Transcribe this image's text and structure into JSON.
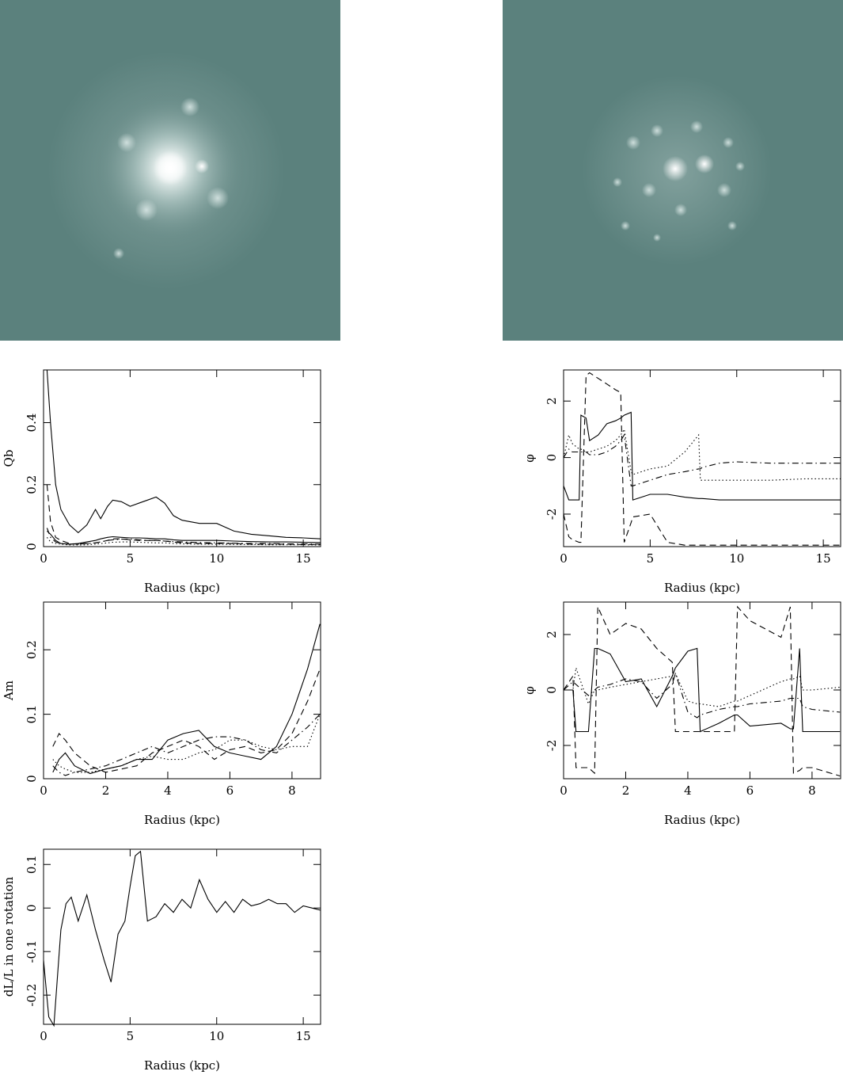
{
  "chart_data": [
    {
      "type": "line",
      "x_label": "Radius (kpc)",
      "y_label": "Qb",
      "xlim": [
        0,
        16
      ],
      "ylim": [
        0,
        0.57
      ],
      "xticks": [
        0,
        5,
        10,
        15
      ],
      "yticks": [
        0,
        0.2,
        0.4
      ],
      "x": [
        0.2,
        0.4,
        0.7,
        1,
        1.5,
        2,
        2.5,
        3,
        3.3,
        3.7,
        4,
        4.5,
        5,
        5.5,
        6,
        6.5,
        7,
        7.5,
        8,
        9,
        10,
        11,
        12,
        13,
        14,
        15,
        16
      ],
      "series": [
        {
          "style": "solid",
          "color": "#000",
          "values": [
            0.57,
            0.4,
            0.2,
            0.12,
            0.07,
            0.045,
            0.07,
            0.12,
            0.09,
            0.13,
            0.15,
            0.145,
            0.13,
            0.14,
            0.15,
            0.16,
            0.14,
            0.1,
            0.085,
            0.075,
            0.075,
            0.05,
            0.04,
            0.035,
            0.03,
            0.028,
            0.025
          ]
        },
        {
          "style": "solid",
          "color": "#000",
          "values": [
            0.05,
            0.04,
            0.02,
            0.01,
            0.008,
            0.01,
            0.015,
            0.02,
            0.025,
            0.03,
            0.032,
            0.03,
            0.028,
            0.028,
            0.027,
            0.025,
            0.025,
            0.022,
            0.02,
            0.02,
            0.02,
            0.018,
            0.016,
            0.015,
            0.015,
            0.014,
            0.013
          ]
        },
        {
          "style": "dashed",
          "color": "#000",
          "values": [
            0.2,
            0.08,
            0.03,
            0.02,
            0.01,
            0.008,
            0.01,
            0.012,
            0.015,
            0.02,
            0.025,
            0.025,
            0.022,
            0.02,
            0.02,
            0.02,
            0.018,
            0.015,
            0.012,
            0.01,
            0.01,
            0.01,
            0.008,
            0.008,
            0.008,
            0.007,
            0.007
          ]
        },
        {
          "style": "dotted",
          "color": "#000",
          "values": [
            0.03,
            0.015,
            0.01,
            0.008,
            0.005,
            0.005,
            0.006,
            0.008,
            0.01,
            0.012,
            0.014,
            0.015,
            0.015,
            0.014,
            0.013,
            0.012,
            0.012,
            0.01,
            0.009,
            0.008,
            0.008,
            0.007,
            0.007,
            0.006,
            0.006,
            0.006,
            0.005
          ]
        },
        {
          "style": "dashdot",
          "color": "#000",
          "values": [
            0.06,
            0.03,
            0.015,
            0.01,
            0.008,
            0.008,
            0.01,
            0.012,
            0.015,
            0.02,
            0.022,
            0.024,
            0.024,
            0.022,
            0.02,
            0.02,
            0.018,
            0.016,
            0.015,
            0.013,
            0.012,
            0.011,
            0.01,
            0.01,
            0.009,
            0.009,
            0.008
          ]
        }
      ]
    },
    {
      "type": "line",
      "x_label": "Radius (kpc)",
      "y_label": "φ",
      "xlim": [
        0,
        16
      ],
      "ylim": [
        -3.15,
        3.1
      ],
      "xticks": [
        0,
        5,
        10,
        15
      ],
      "yticks": [
        -2,
        0,
        2
      ],
      "x": [
        0,
        0.3,
        0.5,
        0.9,
        1,
        1.3,
        1.5,
        2,
        2.5,
        3,
        3.3,
        3.5,
        3.9,
        4,
        5,
        6,
        7,
        7.8,
        7.9,
        8,
        9,
        10,
        12,
        14,
        16
      ],
      "series": [
        {
          "style": "solid",
          "color": "#000",
          "values": [
            -1,
            -1.5,
            -1.5,
            -1.5,
            1.5,
            1.4,
            0.6,
            0.8,
            1.2,
            1.3,
            1.4,
            1.5,
            1.6,
            -1.5,
            -1.3,
            -1.3,
            -1.4,
            -1.45,
            -1.45,
            -1.45,
            -1.5,
            -1.5,
            -1.5,
            -1.5,
            -1.5
          ]
        },
        {
          "style": "dashed",
          "color": "#000",
          "values": [
            -2,
            -2.8,
            -2.9,
            -3,
            -3,
            2.9,
            3,
            2.8,
            2.6,
            2.4,
            2.3,
            -3,
            -2.3,
            -2.1,
            -2,
            -3,
            -3.1,
            -3.1,
            -3.1,
            -3.1,
            -3.1,
            -3.1,
            -3.1,
            -3.1,
            -3.1
          ]
        },
        {
          "style": "dotted",
          "color": "#000",
          "values": [
            0,
            0.8,
            0.5,
            0.3,
            0.3,
            0.2,
            0.2,
            0.3,
            0.4,
            0.6,
            0.8,
            1,
            -0.5,
            -0.6,
            -0.4,
            -0.3,
            0.2,
            0.8,
            -0.8,
            -0.8,
            -0.8,
            -0.8,
            -0.8,
            -0.75,
            -0.75
          ]
        },
        {
          "style": "dashdot",
          "color": "#000",
          "values": [
            0,
            0.3,
            0.2,
            0.2,
            0.2,
            0.2,
            0.1,
            0.1,
            0.2,
            0.4,
            0.6,
            0.8,
            -1,
            -1,
            -0.8,
            -0.6,
            -0.5,
            -0.4,
            -0.4,
            -0.35,
            -0.2,
            -0.15,
            -0.2,
            -0.2,
            -0.2
          ]
        }
      ]
    },
    {
      "type": "line",
      "x_label": "Radius (kpc)",
      "y_label": "Am",
      "xlim": [
        0,
        8.92
      ],
      "ylim": [
        0,
        0.274
      ],
      "xticks": [
        0,
        2,
        4,
        6,
        8
      ],
      "yticks": [
        0,
        0.1,
        0.2
      ],
      "x": [
        0.3,
        0.5,
        0.7,
        1,
        1.5,
        2,
        2.5,
        3,
        3.5,
        4,
        4.5,
        5,
        5.5,
        6,
        6.5,
        7,
        7.5,
        8,
        8.5,
        8.9
      ],
      "series": [
        {
          "style": "solid",
          "color": "#000",
          "values": [
            0.01,
            0.03,
            0.04,
            0.02,
            0.008,
            0.015,
            0.02,
            0.03,
            0.03,
            0.06,
            0.07,
            0.075,
            0.05,
            0.04,
            0.035,
            0.03,
            0.05,
            0.1,
            0.17,
            0.24
          ]
        },
        {
          "style": "dashed",
          "color": "#000",
          "values": [
            0.05,
            0.07,
            0.06,
            0.04,
            0.02,
            0.01,
            0.015,
            0.02,
            0.04,
            0.05,
            0.06,
            0.05,
            0.03,
            0.045,
            0.05,
            0.04,
            0.045,
            0.07,
            0.12,
            0.17
          ]
        },
        {
          "style": "dotted",
          "color": "#000",
          "values": [
            0.03,
            0.02,
            0.015,
            0.01,
            0.01,
            0.015,
            0.02,
            0.03,
            0.035,
            0.03,
            0.03,
            0.04,
            0.045,
            0.06,
            0.06,
            0.05,
            0.045,
            0.05,
            0.05,
            0.1
          ]
        },
        {
          "style": "dashdot",
          "color": "#000",
          "values": [
            0.02,
            0.01,
            0.005,
            0.01,
            0.015,
            0.02,
            0.03,
            0.04,
            0.05,
            0.04,
            0.05,
            0.06,
            0.065,
            0.065,
            0.06,
            0.045,
            0.04,
            0.06,
            0.08,
            0.1
          ]
        }
      ]
    },
    {
      "type": "line",
      "x_label": "Radius (kpc)",
      "y_label": "φ",
      "xlim": [
        0,
        8.92
      ],
      "ylim": [
        -3.2,
        3.17
      ],
      "xticks": [
        0,
        2,
        4,
        6,
        8
      ],
      "yticks": [
        -2,
        0,
        2
      ],
      "x": [
        0,
        0.3,
        0.4,
        0.8,
        1,
        1.1,
        1.5,
        2,
        2.5,
        3,
        3.5,
        3.6,
        4,
        4.3,
        4.4,
        5,
        5.5,
        5.6,
        6,
        7,
        7.3,
        7.4,
        7.6,
        7.7,
        8,
        8.9
      ],
      "series": [
        {
          "style": "solid",
          "color": "#000",
          "values": [
            0,
            0,
            -1.5,
            -1.5,
            1.5,
            1.5,
            1.3,
            0.3,
            0.4,
            -0.6,
            0.5,
            0.8,
            1.4,
            1.5,
            -1.5,
            -1.2,
            -0.9,
            -0.9,
            -1.3,
            -1.2,
            -1.4,
            -1.4,
            1.5,
            -1.5,
            -1.5,
            -1.5
          ]
        },
        {
          "style": "dashed",
          "color": "#000",
          "values": [
            0,
            0.5,
            -2.8,
            -2.8,
            -3,
            3,
            2,
            2.4,
            2.2,
            1.5,
            1,
            -1.5,
            -1.5,
            -1.5,
            -1.5,
            -1.5,
            -1.5,
            3,
            2.5,
            1.9,
            3,
            -3,
            -2.9,
            -2.8,
            -2.8,
            -3.1
          ]
        },
        {
          "style": "dotted",
          "color": "#000",
          "values": [
            0,
            0,
            0.8,
            -0.5,
            0,
            0,
            0.1,
            0.2,
            0.3,
            0.4,
            0.5,
            0.6,
            -0.4,
            -0.5,
            -0.5,
            -0.6,
            -0.4,
            -0.4,
            -0.2,
            0.3,
            0.4,
            0.4,
            0.5,
            0,
            0,
            0.1
          ]
        },
        {
          "style": "dashdot",
          "color": "#000",
          "values": [
            0,
            0.3,
            0.2,
            -0.2,
            0,
            0.1,
            0.2,
            0.4,
            0.3,
            -0.3,
            0.2,
            0.6,
            -0.8,
            -1,
            -0.9,
            -0.7,
            -0.6,
            -0.6,
            -0.5,
            -0.4,
            -0.3,
            -0.3,
            -0.3,
            -0.6,
            -0.7,
            -0.8
          ]
        }
      ]
    },
    {
      "type": "line",
      "x_label": "Radius (kpc)",
      "y_label": "dL/L in one rotation",
      "xlim": [
        0,
        16
      ],
      "ylim": [
        -0.267,
        0.135
      ],
      "xticks": [
        0,
        5,
        10,
        15
      ],
      "yticks": [
        -0.2,
        -0.1,
        0,
        0.1
      ],
      "x": [
        0,
        0.3,
        0.6,
        1,
        1.3,
        1.6,
        2,
        2.5,
        3,
        3.5,
        3.9,
        4.3,
        4.7,
        5,
        5.3,
        5.6,
        6,
        6.5,
        7,
        7.5,
        8,
        8.5,
        9,
        9.5,
        10,
        10.5,
        11,
        11.5,
        12,
        12.5,
        13,
        13.5,
        14,
        14.5,
        15,
        15.5,
        16
      ],
      "series": [
        {
          "style": "solid",
          "color": "#000",
          "values": [
            -0.12,
            -0.25,
            -0.27,
            -0.05,
            0.01,
            0.025,
            -0.03,
            0.03,
            -0.05,
            -0.12,
            -0.17,
            -0.06,
            -0.03,
            0.05,
            0.12,
            0.13,
            -0.03,
            -0.02,
            0.01,
            -0.01,
            0.02,
            0,
            0.065,
            0.02,
            -0.01,
            0.015,
            -0.01,
            0.02,
            0.005,
            0.01,
            0.02,
            0.01,
            0.01,
            -0.01,
            0.005,
            0,
            -0.005
          ]
        }
      ]
    }
  ]
}
